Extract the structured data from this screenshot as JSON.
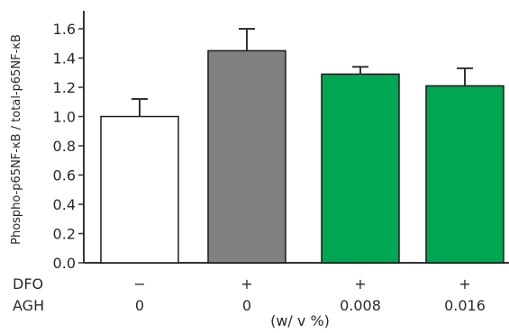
{
  "chart_data": {
    "type": "bar",
    "ylabel": "Phospho-p65NF-κB / total-p65NF-κB",
    "ylim": [
      0,
      1.6
    ],
    "yticks": [
      "0.0",
      "0.2",
      "0.4",
      "0.6",
      "0.8",
      "1.0",
      "1.2",
      "1.4",
      "1.6"
    ],
    "grid": false,
    "legend": "none",
    "rows": [
      {
        "label": "DFO",
        "values": [
          "−",
          "+",
          "+",
          "+"
        ]
      },
      {
        "label": "AGH",
        "values": [
          "0",
          "0",
          "0.008",
          "0.016"
        ]
      }
    ],
    "unit_label": "(w/ v %)",
    "values": [
      1.0,
      1.45,
      1.29,
      1.21
    ],
    "errors": [
      0.12,
      0.15,
      0.05,
      0.12
    ],
    "colors": [
      "#ffffff",
      "#808080",
      "#00a651",
      "#00a651"
    ],
    "edge_color": "#1a1a1a",
    "axis_color": "#333333"
  }
}
